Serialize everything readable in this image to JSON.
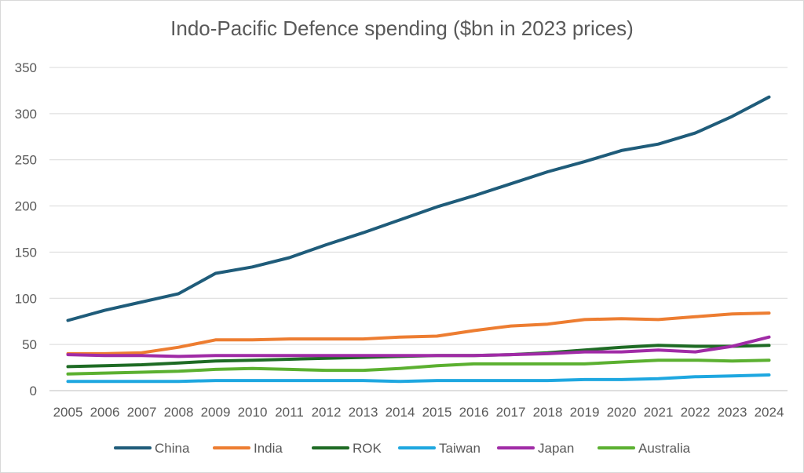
{
  "chart_data": {
    "type": "line",
    "title": "Indo-Pacific Defence spending ($bn in 2023 prices)",
    "xlabel": "",
    "ylabel": "",
    "ylim": [
      0,
      350
    ],
    "yticks": [
      0,
      50,
      100,
      150,
      200,
      250,
      300,
      350
    ],
    "grid": true,
    "legend_position": "bottom",
    "categories": [
      "2005",
      "2006",
      "2007",
      "2008",
      "2009",
      "2010",
      "2011",
      "2012",
      "2013",
      "2014",
      "2015",
      "2016",
      "2017",
      "2018",
      "2019",
      "2020",
      "2021",
      "2022",
      "2023",
      "2024"
    ],
    "series": [
      {
        "name": "China",
        "color": "#1f5c7a",
        "values": [
          76,
          87,
          96,
          105,
          127,
          134,
          144,
          158,
          171,
          185,
          199,
          211,
          224,
          237,
          248,
          260,
          267,
          279,
          297,
          318
        ]
      },
      {
        "name": "India",
        "color": "#ed7d31",
        "values": [
          40,
          40,
          41,
          47,
          55,
          55,
          56,
          56,
          56,
          58,
          59,
          65,
          70,
          72,
          77,
          78,
          77,
          80,
          83,
          84
        ]
      },
      {
        "name": "ROK",
        "color": "#1e6b24",
        "values": [
          26,
          27,
          28,
          30,
          32,
          33,
          34,
          35,
          36,
          37,
          38,
          38,
          39,
          41,
          44,
          47,
          49,
          48,
          48,
          49
        ]
      },
      {
        "name": "Taiwan",
        "color": "#1ea7e0",
        "values": [
          10,
          10,
          10,
          10,
          11,
          11,
          11,
          11,
          11,
          10,
          11,
          11,
          11,
          11,
          12,
          12,
          13,
          15,
          16,
          17
        ]
      },
      {
        "name": "Japan",
        "color": "#a02ba6",
        "values": [
          39,
          38,
          38,
          37,
          38,
          38,
          38,
          38,
          38,
          38,
          38,
          38,
          39,
          40,
          42,
          42,
          44,
          42,
          48,
          58
        ]
      },
      {
        "name": "Australia",
        "color": "#5bb030",
        "values": [
          18,
          19,
          20,
          21,
          23,
          24,
          23,
          22,
          22,
          24,
          27,
          29,
          29,
          29,
          29,
          31,
          33,
          33,
          32,
          33
        ]
      }
    ]
  }
}
